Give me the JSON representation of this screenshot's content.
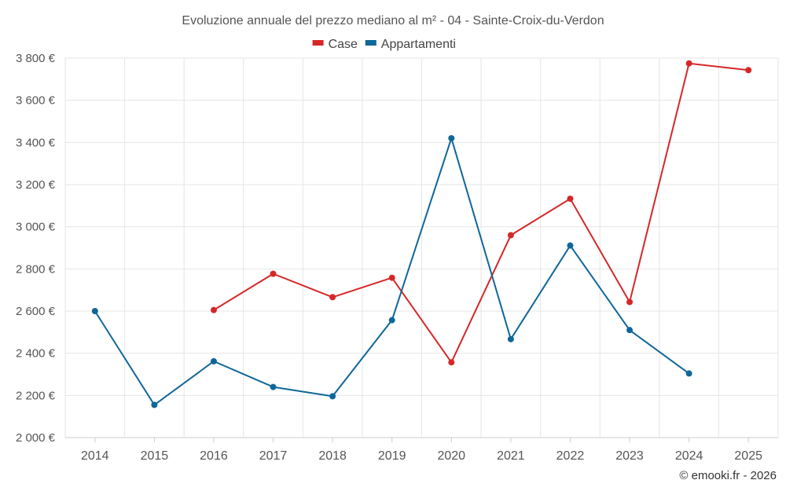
{
  "chart_data": {
    "type": "line",
    "title": "Evoluzione annuale del prezzo mediano al m² - 04 - Sainte-Croix-du-Verdon",
    "x": [
      "2014",
      "2015",
      "2016",
      "2017",
      "2018",
      "2019",
      "2020",
      "2021",
      "2022",
      "2023",
      "2024",
      "2025"
    ],
    "series": [
      {
        "name": "Case",
        "color": "#d62728",
        "values": [
          null,
          null,
          2605,
          2777,
          2666,
          2758,
          2357,
          2960,
          3133,
          2643,
          3775,
          3743
        ]
      },
      {
        "name": "Appartamenti",
        "color": "#0f6699",
        "values": [
          2600,
          2155,
          2362,
          2240,
          2196,
          2557,
          3420,
          2467,
          2911,
          2510,
          2304,
          null
        ]
      }
    ],
    "ylim": [
      2000,
      3800
    ],
    "yticks": [
      2000,
      2200,
      2400,
      2600,
      2800,
      3000,
      3200,
      3400,
      3600,
      3800
    ],
    "ytick_labels": [
      "2 000 €",
      "2 200 €",
      "2 400 €",
      "2 600 €",
      "2 800 €",
      "3 000 €",
      "3 200 €",
      "3 400 €",
      "3 600 €",
      "3 800 €"
    ],
    "xlabel": "",
    "ylabel": "",
    "legend_position": "top-center",
    "grid": true
  },
  "footer": {
    "copyright": "© emooki.fr - 2026"
  }
}
